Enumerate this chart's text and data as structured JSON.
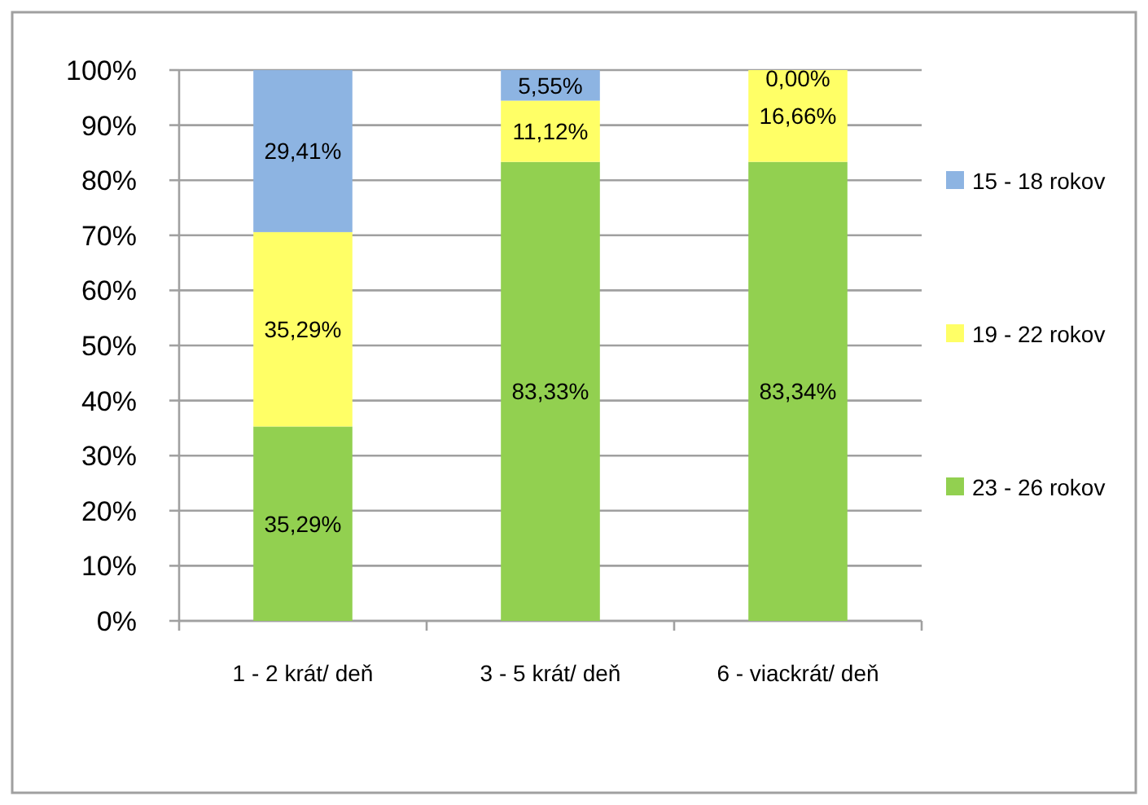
{
  "chart_data": {
    "type": "bar",
    "stacked": true,
    "categories": [
      "1 - 2 krát/ deň",
      "3 - 5 krát/ deň",
      "6 - viackrát/ deň"
    ],
    "series": [
      {
        "name": "23 - 26 rokov",
        "color": "#92d050",
        "values": [
          35.29,
          83.33,
          83.34
        ],
        "value_labels": [
          "35,29%",
          "83,33%",
          "83,34%"
        ]
      },
      {
        "name": "19 - 22 rokov",
        "color": "#ffff66",
        "values": [
          35.29,
          11.12,
          16.66
        ],
        "value_labels": [
          "35,29%",
          "11,12%",
          "16,66%"
        ]
      },
      {
        "name": "15 - 18 rokov",
        "color": "#8db4e2",
        "values": [
          29.41,
          5.55,
          0
        ],
        "value_labels": [
          "29,41%",
          "5,55%",
          "0,00%"
        ]
      }
    ],
    "ylim": [
      0,
      100
    ],
    "yticks": [
      {
        "value": 0,
        "label": "0%"
      },
      {
        "value": 10,
        "label": "10%"
      },
      {
        "value": 20,
        "label": "20%"
      },
      {
        "value": 30,
        "label": "30%"
      },
      {
        "value": 40,
        "label": "40%"
      },
      {
        "value": 50,
        "label": "50%"
      },
      {
        "value": 60,
        "label": "60%"
      },
      {
        "value": 70,
        "label": "70%"
      },
      {
        "value": 80,
        "label": "80%"
      },
      {
        "value": 90,
        "label": "90%"
      },
      {
        "value": 100,
        "label": "100%"
      }
    ],
    "grid": "y",
    "legend": "right"
  }
}
